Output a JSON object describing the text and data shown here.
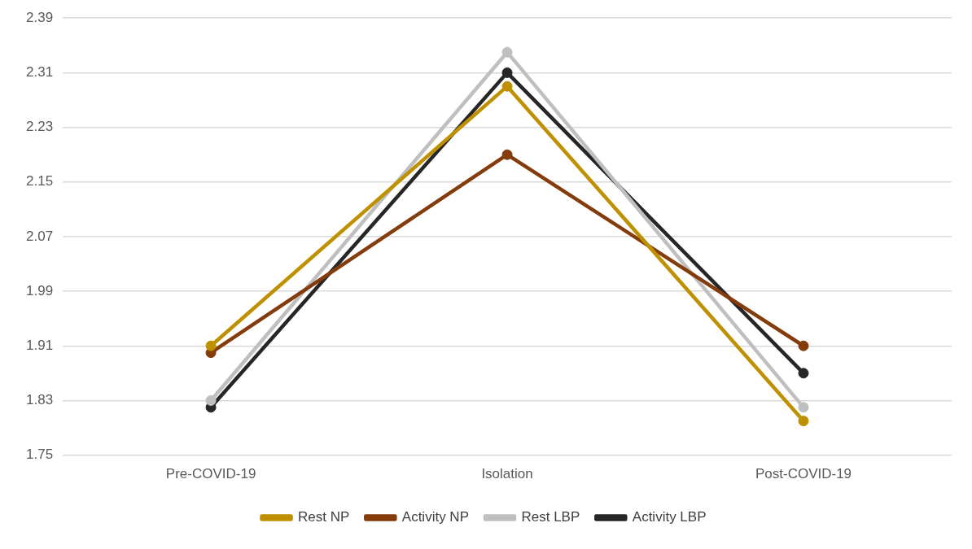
{
  "chart_data": {
    "type": "line",
    "categories": [
      "Pre-COVID-19",
      "Isolation",
      "Post-COVID-19"
    ],
    "series": [
      {
        "name": "Rest NP",
        "color": "#bf9000",
        "values": [
          1.91,
          2.29,
          1.8
        ]
      },
      {
        "name": "Activity NP",
        "color": "#843c0c",
        "values": [
          1.9,
          2.19,
          1.91
        ]
      },
      {
        "name": "Rest LBP",
        "color": "#bfbfbf",
        "values": [
          1.83,
          2.34,
          1.82
        ]
      },
      {
        "name": "Activity LBP",
        "color": "#262626",
        "values": [
          1.82,
          2.31,
          1.87
        ]
      }
    ],
    "ylim": [
      1.75,
      2.39
    ],
    "yticks": [
      1.75,
      1.83,
      1.91,
      1.99,
      2.07,
      2.15,
      2.23,
      2.31,
      2.39
    ],
    "grid": "y",
    "legend": "bottom",
    "marker": "circle",
    "line_style": "solid"
  }
}
